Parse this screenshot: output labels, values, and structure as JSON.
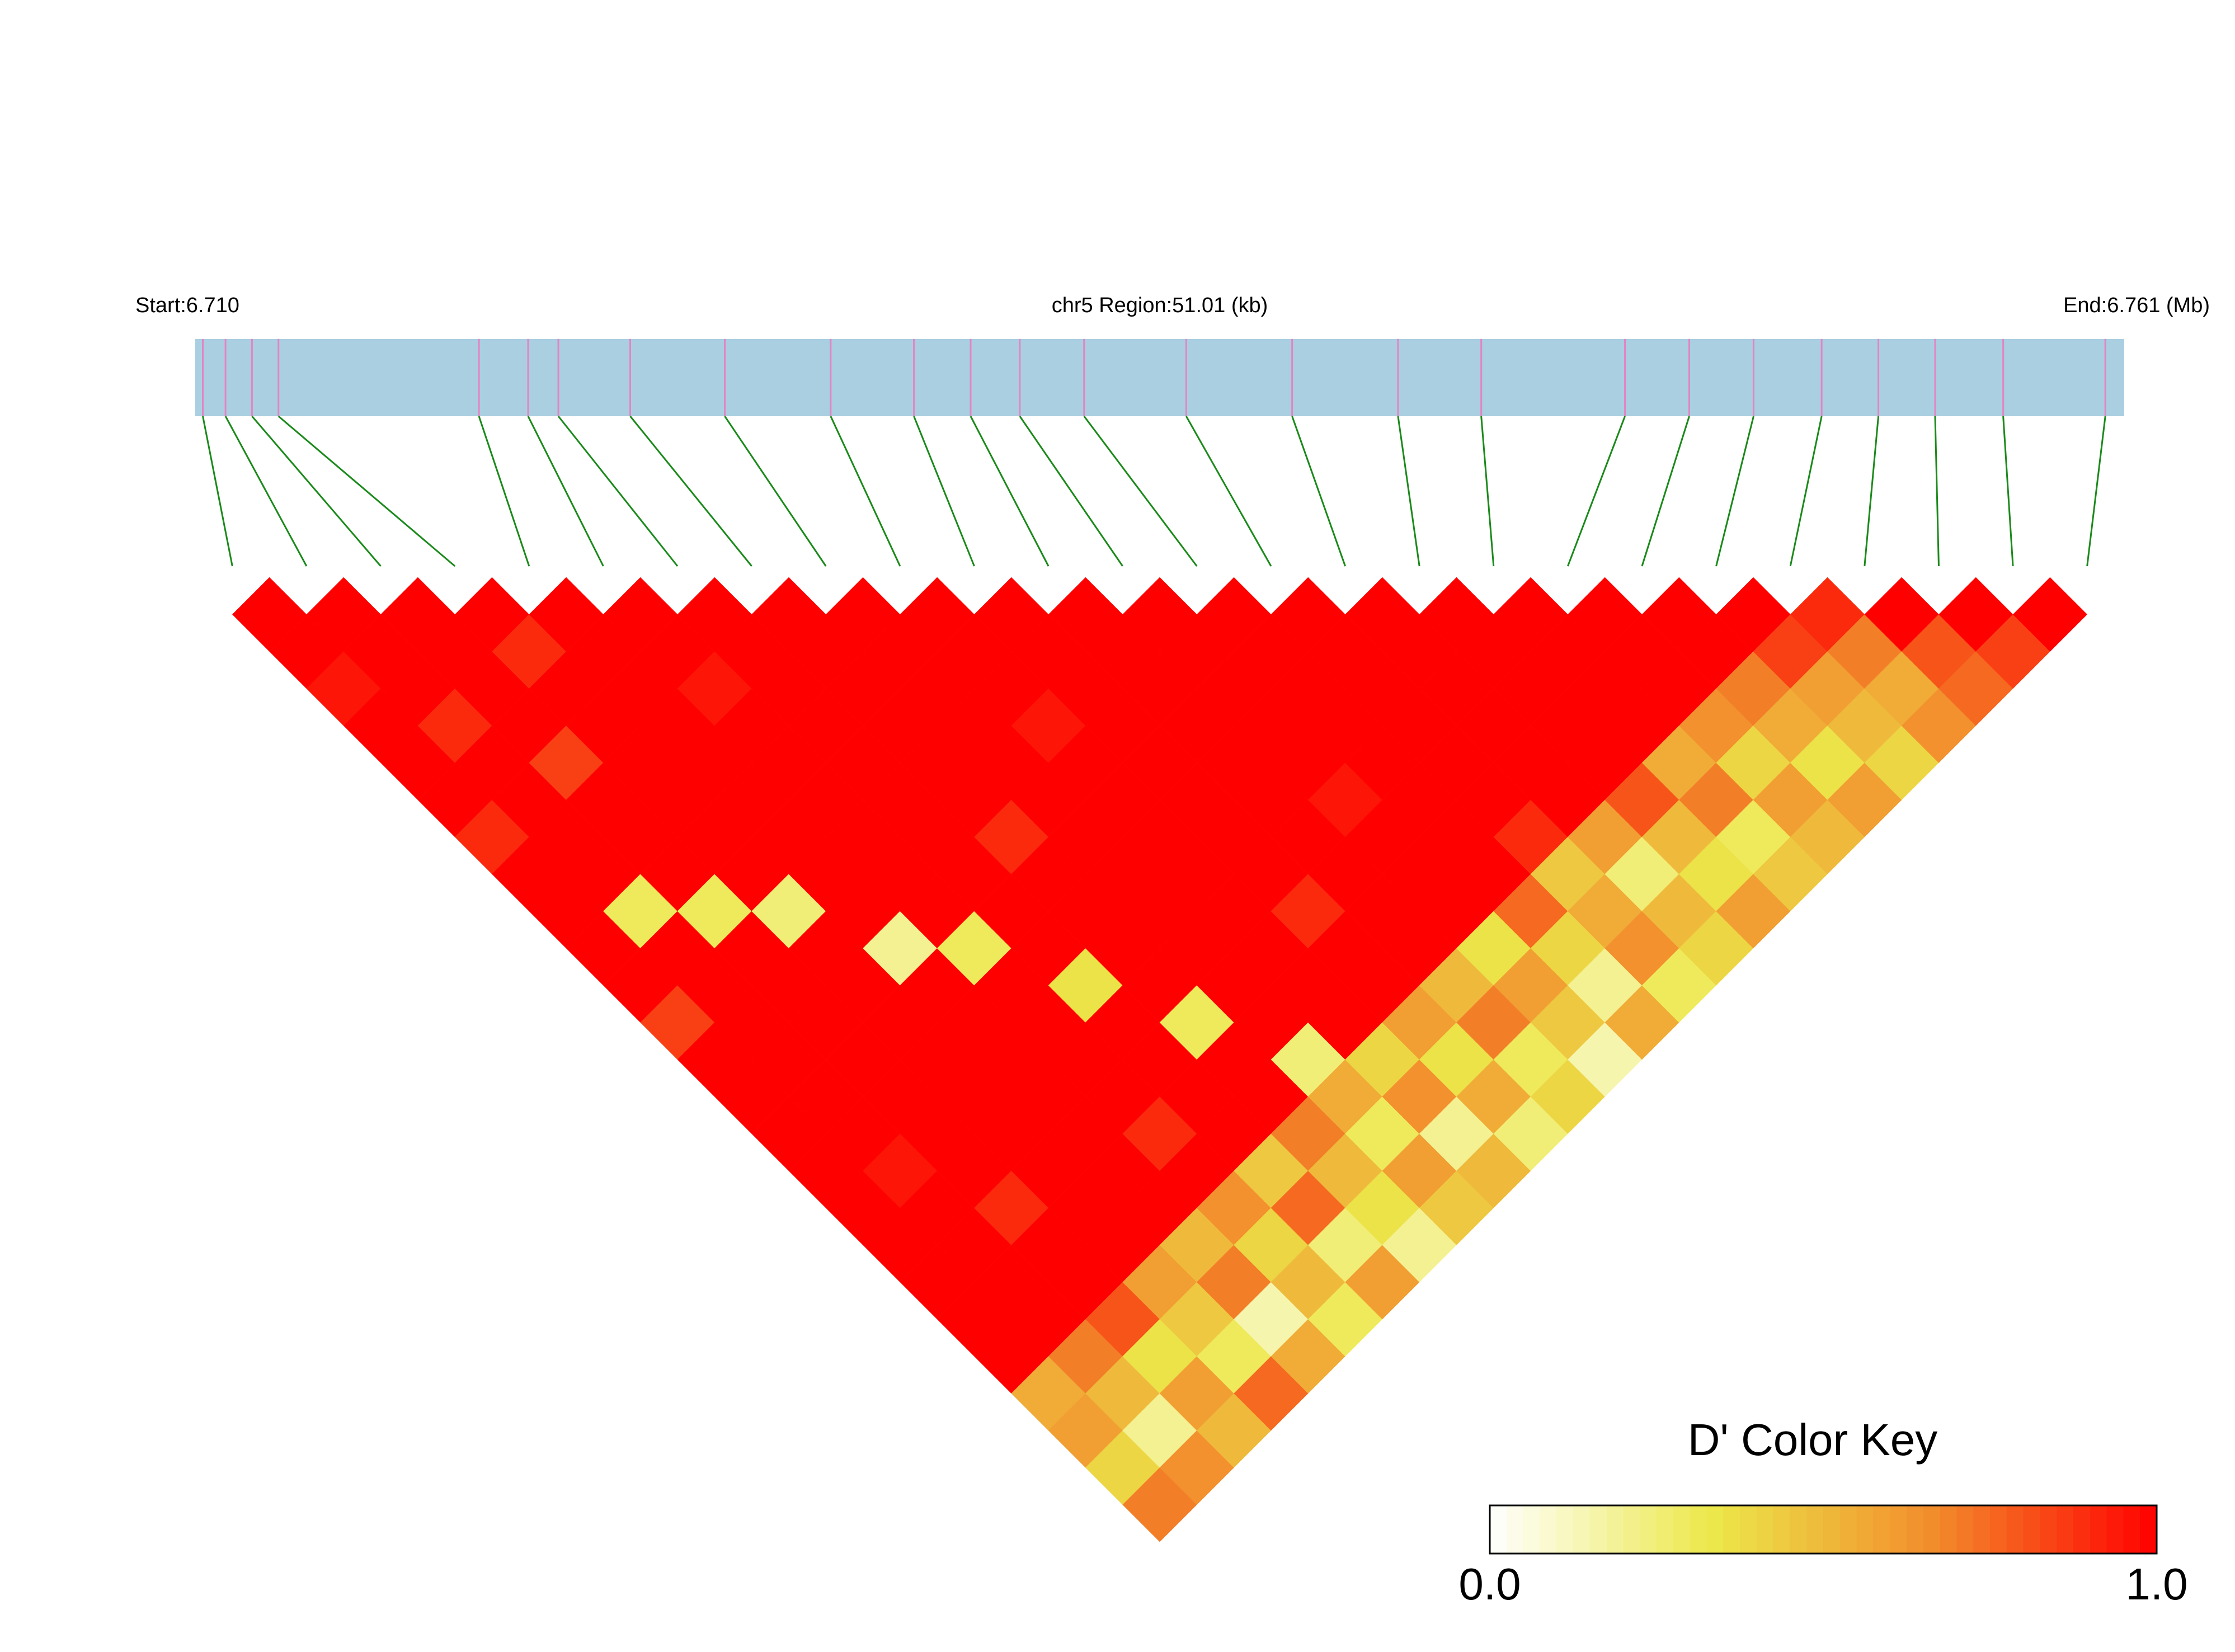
{
  "chart_data": {
    "type": "ld-heatmap",
    "start_label": "Start:6.710",
    "region_label": "chr5 Region:51.01 (kb)",
    "end_label": "End:6.761 (Mb)",
    "xlim": [
      6.71,
      6.761
    ],
    "snp_positions": [
      6.7102,
      6.7108,
      6.7115,
      6.7122,
      6.7175,
      6.7188,
      6.7196,
      6.7215,
      6.724,
      6.7268,
      6.729,
      6.7305,
      6.7318,
      6.7335,
      6.7362,
      6.739,
      6.7418,
      6.744,
      6.7478,
      6.7495,
      6.7512,
      6.753,
      6.7545,
      6.756,
      6.7578,
      6.7605
    ],
    "values": [
      [
        1,
        1,
        0.95,
        1,
        1,
        1,
        0.9,
        1,
        1,
        1,
        1,
        0.85,
        1,
        1,
        1,
        1,
        1,
        1,
        1,
        1,
        1,
        0.55,
        0.6,
        0.4,
        0.7
      ],
      [
        1,
        1,
        1,
        0.9,
        1,
        1,
        1,
        1,
        0.3,
        1,
        1,
        1,
        1,
        1,
        1,
        0.95,
        1,
        1,
        1,
        1,
        0.7,
        0.5,
        0.2,
        0.65
      ],
      [
        1,
        1,
        1,
        1,
        0.85,
        1,
        1,
        1,
        0.3,
        1,
        1,
        1,
        1,
        1,
        1,
        1,
        0.9,
        1,
        1,
        0.8,
        0.35,
        0.6,
        0.5
      ],
      [
        1,
        0.9,
        1,
        1,
        1,
        1,
        1,
        1,
        0.25,
        1,
        1,
        1,
        1,
        1,
        1,
        1,
        1,
        1,
        0.6,
        0.45,
        0.3,
        0.75
      ],
      [
        1,
        1,
        1,
        1,
        1,
        1,
        1,
        1,
        1,
        0.2,
        1,
        1,
        1,
        1,
        1,
        1,
        1,
        0.5,
        0.7,
        0.15,
        0.55
      ],
      [
        1,
        1,
        0.95,
        1,
        1,
        1,
        1,
        1,
        1,
        0.3,
        1,
        1,
        1,
        1,
        0.9,
        1,
        0.65,
        0.4,
        0.5,
        0.3
      ],
      [
        1,
        1,
        1,
        1,
        1,
        1,
        1,
        1,
        1,
        1,
        0.35,
        1,
        1,
        1,
        1,
        0.45,
        0.75,
        0.25,
        0.6
      ],
      [
        1,
        1,
        1,
        1,
        1,
        1,
        0.9,
        1,
        1,
        1,
        1,
        0.3,
        1,
        1,
        0.7,
        0.5,
        0.35,
        0.2
      ],
      [
        1,
        1,
        1,
        1,
        1,
        1,
        1,
        1,
        1,
        1,
        1,
        1,
        0.25,
        0.55,
        0.3,
        0.6,
        0.45
      ],
      [
        1,
        1,
        1,
        0.95,
        1,
        1,
        1,
        1,
        1,
        1,
        1,
        1,
        0.4,
        0.65,
        0.2,
        0.5
      ],
      [
        1,
        1,
        1,
        1,
        1,
        1,
        1,
        1,
        0.9,
        1,
        1,
        0.6,
        0.35,
        0.55,
        0.25
      ],
      [
        1,
        1,
        1,
        1,
        1,
        1,
        1,
        1,
        1,
        1,
        0.5,
        0.7,
        0.3,
        0.4
      ],
      [
        1,
        1,
        1,
        1,
        1,
        0.95,
        1,
        1,
        1,
        0.35,
        0.6,
        0.45,
        0.15
      ],
      [
        1,
        1,
        1,
        1,
        1,
        1,
        1,
        1,
        0.75,
        0.4,
        0.2,
        0.55
      ],
      [
        1,
        1,
        1,
        1,
        1,
        1,
        0.9,
        0.45,
        0.55,
        0.65,
        0.3
      ],
      [
        1,
        1,
        1,
        1,
        1,
        1,
        0.6,
        0.25,
        0.5,
        0.4
      ],
      [
        1,
        1,
        1,
        1,
        1,
        0.8,
        0.5,
        0.35,
        0.6
      ],
      [
        1,
        1,
        1,
        1,
        0.55,
        0.7,
        0.3,
        0.45
      ],
      [
        1,
        1,
        1,
        0.65,
        0.4,
        0.6,
        0.5
      ],
      [
        1,
        1,
        0.7,
        0.55,
        0.35,
        0.6
      ],
      [
        1,
        0.85,
        0.6,
        0.5,
        0.4
      ],
      [
        0.9,
        0.7,
        0.55,
        0.65
      ],
      [
        1,
        0.8,
        0.75
      ],
      [
        1,
        0.85
      ],
      [
        1
      ]
    ],
    "bar_color": "#a9cfe1",
    "snp_color": "#e484c4",
    "link_color": "#1a8a1a",
    "colorbar": {
      "title": "D' Color Key",
      "range": [
        0,
        1
      ],
      "colors": [
        "#ffffff",
        "#ece84a",
        "#f28c2c",
        "#ff0000"
      ],
      "ticks": [
        {
          "value": 0,
          "label": "0.0"
        },
        {
          "value": 1,
          "label": "1.0"
        }
      ]
    }
  }
}
